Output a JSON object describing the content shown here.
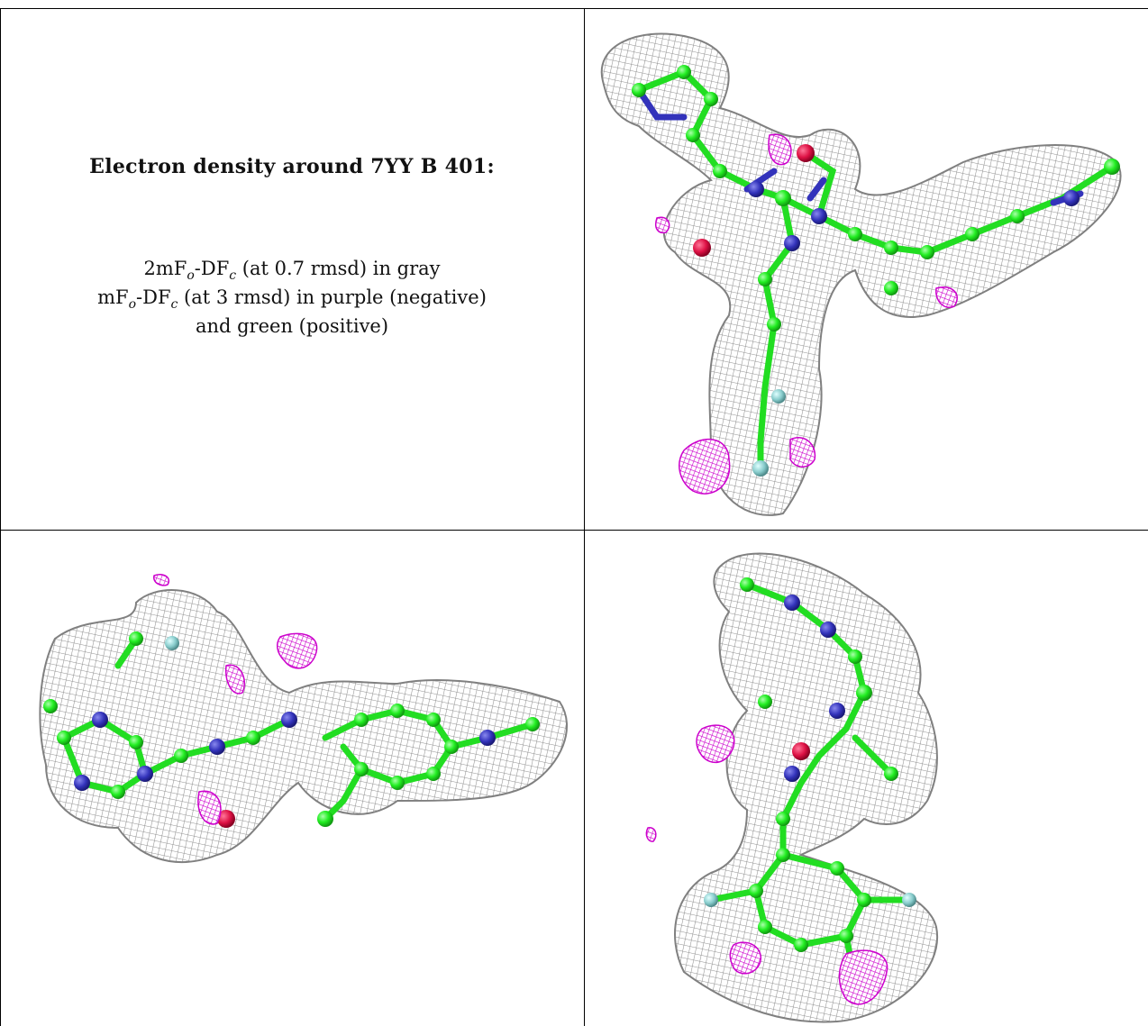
{
  "caption": {
    "title": "Electron density around 7YY B 401:",
    "line1": {
      "a": "2mF",
      "sub1": "o",
      "b": "-DF",
      "sub2": "c",
      "c": " (at 0.7 rmsd) in gray"
    },
    "line2": {
      "a": "mF",
      "sub1": "o",
      "b": "-DF",
      "sub2": "c",
      "c": " (at 3 rmsd) in purple (negative)"
    },
    "line3": "and green (positive)"
  },
  "colors": {
    "mesh_gray": "#9a9a9a",
    "carbon_green": "#22ee22",
    "nitrogen_blue": "#3333bb",
    "oxygen_red": "#dd1144",
    "fluorine_cyan": "#88cccc",
    "negative_purple": "#cc00cc"
  },
  "panels": [
    {
      "icon": "electron-density-view-1"
    },
    {
      "icon": "electron-density-view-2"
    },
    {
      "icon": "electron-density-view-3"
    }
  ]
}
